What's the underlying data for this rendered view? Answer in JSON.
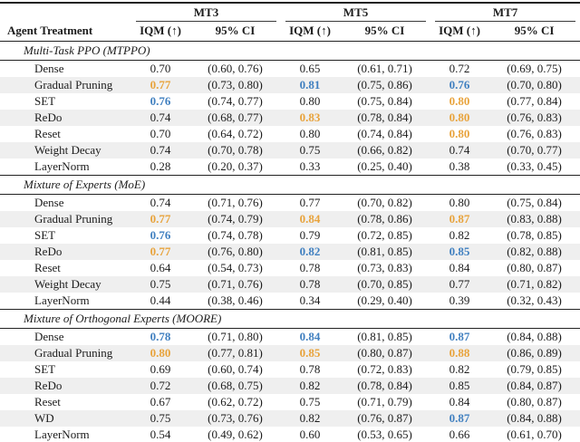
{
  "table": {
    "row_label_header": "Agent Treatment",
    "groups": [
      "MT3",
      "MT5",
      "MT7"
    ],
    "metric_label": "IQM (↑)",
    "ci_label": "95% CI",
    "colors": {
      "best_highlight": "#E8A33C",
      "second_highlight": "#4180C0",
      "stripe": "#EFEFEF",
      "rule": "#222222"
    },
    "sections": [
      {
        "title": "Multi-Task PPO (MTPPO)",
        "rows": [
          {
            "treatment": "Dense",
            "cells": [
              {
                "t": "0.70",
                "c": ""
              },
              {
                "t": "(0.60, 0.76)",
                "c": ""
              },
              {
                "t": "0.65",
                "c": ""
              },
              {
                "t": "(0.61, 0.71)",
                "c": ""
              },
              {
                "t": "0.72",
                "c": ""
              },
              {
                "t": "(0.69, 0.75)",
                "c": ""
              }
            ]
          },
          {
            "treatment": "Gradual Pruning",
            "cells": [
              {
                "t": "0.77",
                "c": "orange"
              },
              {
                "t": "(0.73, 0.80)",
                "c": ""
              },
              {
                "t": "0.81",
                "c": "blue"
              },
              {
                "t": "(0.75, 0.86)",
                "c": ""
              },
              {
                "t": "0.76",
                "c": "blue"
              },
              {
                "t": "(0.70, 0.80)",
                "c": ""
              }
            ]
          },
          {
            "treatment": "SET",
            "cells": [
              {
                "t": "0.76",
                "c": "blue"
              },
              {
                "t": "(0.74, 0.77)",
                "c": ""
              },
              {
                "t": "0.80",
                "c": ""
              },
              {
                "t": "(0.75, 0.84)",
                "c": ""
              },
              {
                "t": "0.80",
                "c": "orange"
              },
              {
                "t": "(0.77, 0.84)",
                "c": ""
              }
            ]
          },
          {
            "treatment": "ReDo",
            "cells": [
              {
                "t": "0.74",
                "c": ""
              },
              {
                "t": "(0.68, 0.77)",
                "c": ""
              },
              {
                "t": "0.83",
                "c": "orange"
              },
              {
                "t": "(0.78, 0.84)",
                "c": ""
              },
              {
                "t": "0.80",
                "c": "orange"
              },
              {
                "t": "(0.76, 0.83)",
                "c": ""
              }
            ]
          },
          {
            "treatment": "Reset",
            "cells": [
              {
                "t": "0.70",
                "c": ""
              },
              {
                "t": "(0.64, 0.72)",
                "c": ""
              },
              {
                "t": "0.80",
                "c": ""
              },
              {
                "t": "(0.74, 0.84)",
                "c": ""
              },
              {
                "t": "0.80",
                "c": "orange"
              },
              {
                "t": "(0.76, 0.83)",
                "c": ""
              }
            ]
          },
          {
            "treatment": "Weight Decay",
            "cells": [
              {
                "t": "0.74",
                "c": ""
              },
              {
                "t": "(0.70, 0.78)",
                "c": ""
              },
              {
                "t": "0.75",
                "c": ""
              },
              {
                "t": "(0.66, 0.82)",
                "c": ""
              },
              {
                "t": "0.74",
                "c": ""
              },
              {
                "t": "(0.70, 0.77)",
                "c": ""
              }
            ]
          },
          {
            "treatment": "LayerNorm",
            "cells": [
              {
                "t": "0.28",
                "c": ""
              },
              {
                "t": "(0.20, 0.37)",
                "c": ""
              },
              {
                "t": "0.33",
                "c": ""
              },
              {
                "t": "(0.25, 0.40)",
                "c": ""
              },
              {
                "t": "0.38",
                "c": ""
              },
              {
                "t": "(0.33, 0.45)",
                "c": ""
              }
            ]
          }
        ]
      },
      {
        "title": "Mixture of Experts (MoE)",
        "rows": [
          {
            "treatment": "Dense",
            "cells": [
              {
                "t": "0.74",
                "c": ""
              },
              {
                "t": "(0.71, 0.76)",
                "c": ""
              },
              {
                "t": "0.77",
                "c": ""
              },
              {
                "t": "(0.70, 0.82)",
                "c": ""
              },
              {
                "t": "0.80",
                "c": ""
              },
              {
                "t": "(0.75, 0.84)",
                "c": ""
              }
            ]
          },
          {
            "treatment": "Gradual Pruning",
            "cells": [
              {
                "t": "0.77",
                "c": "orange"
              },
              {
                "t": "(0.74, 0.79)",
                "c": ""
              },
              {
                "t": "0.84",
                "c": "orange"
              },
              {
                "t": "(0.78, 0.86)",
                "c": ""
              },
              {
                "t": "0.87",
                "c": "orange"
              },
              {
                "t": "(0.83, 0.88)",
                "c": ""
              }
            ]
          },
          {
            "treatment": "SET",
            "cells": [
              {
                "t": "0.76",
                "c": "blue"
              },
              {
                "t": "(0.74, 0.78)",
                "c": ""
              },
              {
                "t": "0.79",
                "c": ""
              },
              {
                "t": "(0.72, 0.85)",
                "c": ""
              },
              {
                "t": "0.82",
                "c": ""
              },
              {
                "t": "(0.78, 0.85)",
                "c": ""
              }
            ]
          },
          {
            "treatment": "ReDo",
            "cells": [
              {
                "t": "0.77",
                "c": "orange"
              },
              {
                "t": "(0.76, 0.80)",
                "c": ""
              },
              {
                "t": "0.82",
                "c": "blue"
              },
              {
                "t": "(0.81, 0.85)",
                "c": ""
              },
              {
                "t": "0.85",
                "c": "blue"
              },
              {
                "t": "(0.82, 0.88)",
                "c": ""
              }
            ]
          },
          {
            "treatment": "Reset",
            "cells": [
              {
                "t": "0.64",
                "c": ""
              },
              {
                "t": "(0.54, 0.73)",
                "c": ""
              },
              {
                "t": "0.78",
                "c": ""
              },
              {
                "t": "(0.73, 0.83)",
                "c": ""
              },
              {
                "t": "0.84",
                "c": ""
              },
              {
                "t": "(0.80, 0.87)",
                "c": ""
              }
            ]
          },
          {
            "treatment": "Weight Decay",
            "cells": [
              {
                "t": "0.75",
                "c": ""
              },
              {
                "t": "(0.71, 0.76)",
                "c": ""
              },
              {
                "t": "0.78",
                "c": ""
              },
              {
                "t": "(0.70, 0.85)",
                "c": ""
              },
              {
                "t": "0.77",
                "c": ""
              },
              {
                "t": "(0.71, 0.82)",
                "c": ""
              }
            ]
          },
          {
            "treatment": "LayerNorm",
            "cells": [
              {
                "t": "0.44",
                "c": ""
              },
              {
                "t": "(0.38, 0.46)",
                "c": ""
              },
              {
                "t": "0.34",
                "c": ""
              },
              {
                "t": "(0.29, 0.40)",
                "c": ""
              },
              {
                "t": "0.39",
                "c": ""
              },
              {
                "t": "(0.32, 0.43)",
                "c": ""
              }
            ]
          }
        ]
      },
      {
        "title": "Mixture of Orthogonal Experts (MOORE)",
        "rows": [
          {
            "treatment": "Dense",
            "cells": [
              {
                "t": "0.78",
                "c": "blue"
              },
              {
                "t": "(0.71, 0.80)",
                "c": ""
              },
              {
                "t": "0.84",
                "c": "blue"
              },
              {
                "t": "(0.81, 0.85)",
                "c": ""
              },
              {
                "t": "0.87",
                "c": "blue"
              },
              {
                "t": "(0.84, 0.88)",
                "c": ""
              }
            ]
          },
          {
            "treatment": "Gradual Pruning",
            "cells": [
              {
                "t": "0.80",
                "c": "orange"
              },
              {
                "t": "(0.77, 0.81)",
                "c": ""
              },
              {
                "t": "0.85",
                "c": "orange"
              },
              {
                "t": "(0.80, 0.87)",
                "c": ""
              },
              {
                "t": "0.88",
                "c": "orange"
              },
              {
                "t": "(0.86, 0.89)",
                "c": ""
              }
            ]
          },
          {
            "treatment": "SET",
            "cells": [
              {
                "t": "0.69",
                "c": ""
              },
              {
                "t": "(0.60, 0.74)",
                "c": ""
              },
              {
                "t": "0.78",
                "c": ""
              },
              {
                "t": "(0.72, 0.83)",
                "c": ""
              },
              {
                "t": "0.82",
                "c": ""
              },
              {
                "t": "(0.79, 0.85)",
                "c": ""
              }
            ]
          },
          {
            "treatment": "ReDo",
            "cells": [
              {
                "t": "0.72",
                "c": ""
              },
              {
                "t": "(0.68, 0.75)",
                "c": ""
              },
              {
                "t": "0.82",
                "c": ""
              },
              {
                "t": "(0.78, 0.84)",
                "c": ""
              },
              {
                "t": "0.85",
                "c": ""
              },
              {
                "t": "(0.84, 0.87)",
                "c": ""
              }
            ]
          },
          {
            "treatment": "Reset",
            "cells": [
              {
                "t": "0.67",
                "c": ""
              },
              {
                "t": "(0.62, 0.72)",
                "c": ""
              },
              {
                "t": "0.75",
                "c": ""
              },
              {
                "t": "(0.71, 0.79)",
                "c": ""
              },
              {
                "t": "0.84",
                "c": ""
              },
              {
                "t": "(0.80, 0.87)",
                "c": ""
              }
            ]
          },
          {
            "treatment": "WD",
            "cells": [
              {
                "t": "0.75",
                "c": ""
              },
              {
                "t": "(0.73, 0.76)",
                "c": ""
              },
              {
                "t": "0.82",
                "c": ""
              },
              {
                "t": "(0.76, 0.87)",
                "c": ""
              },
              {
                "t": "0.87",
                "c": "blue"
              },
              {
                "t": "(0.84, 0.88)",
                "c": ""
              }
            ]
          },
          {
            "treatment": "LayerNorm",
            "cells": [
              {
                "t": "0.54",
                "c": ""
              },
              {
                "t": "(0.49, 0.62)",
                "c": ""
              },
              {
                "t": "0.60",
                "c": ""
              },
              {
                "t": "(0.53, 0.65)",
                "c": ""
              },
              {
                "t": "0.66",
                "c": ""
              },
              {
                "t": "(0.61, 0.70)",
                "c": ""
              }
            ]
          }
        ]
      }
    ]
  }
}
